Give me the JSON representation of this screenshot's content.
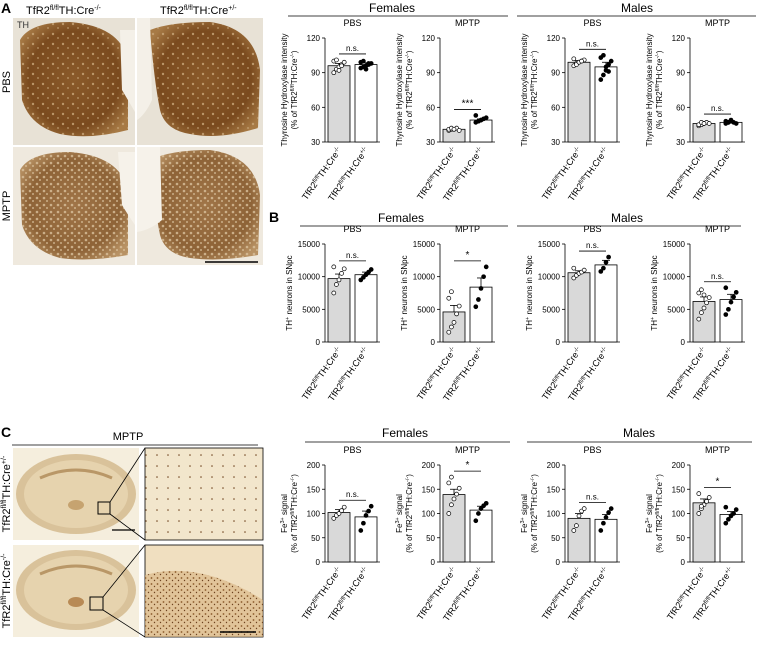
{
  "figure": {
    "panels": [
      {
        "letter": "A"
      },
      {
        "letter": "B"
      },
      {
        "letter": "C"
      }
    ],
    "panelA": {
      "stain_label": "TH",
      "column_headers": [
        {
          "base": "TfR2",
          "sup": "fl/fl",
          "rest": "TH:Cre",
          "rest_sup": "-/-"
        },
        {
          "base": "TfR2",
          "sup": "fl/fl",
          "rest": "TH:Cre",
          "rest_sup": "+/-"
        }
      ],
      "row_labels": [
        "PBS",
        "MPTP"
      ]
    },
    "panelC_images": {
      "title": "MPTP",
      "row_labels": [
        {
          "base": "TfR2",
          "sup": "fl/fl",
          "rest": "TH:Cre",
          "rest_sup": "+/-"
        },
        {
          "base": "TfR2",
          "sup": "fl/fl",
          "rest": "TH:Cre",
          "rest_sup": "-/-"
        }
      ]
    },
    "group_headers": {
      "females": "Females",
      "males": "Males"
    }
  },
  "chart_data": [
    {
      "type": "bar",
      "panel": "A",
      "group": "Females",
      "title": "PBS",
      "categories": [
        "TfR2 fl/fl TH:Cre -/-",
        "TfR2 fl/fl TH:Cre +/-"
      ],
      "values": [
        96,
        97
      ],
      "errors": [
        2,
        1.5
      ],
      "points": [
        [
          90,
          93,
          95,
          97,
          99,
          100,
          101,
          92,
          96
        ],
        [
          94,
          95,
          96,
          97,
          98,
          99,
          100,
          93,
          98
        ]
      ],
      "ylabel": "Thyrosine Hydroxylase intensity (% of TfR2 fl/fl TH:Cre -/-)",
      "yticks": [
        30,
        60,
        90,
        120
      ],
      "ylim": [
        30,
        120
      ],
      "significance": "n.s."
    },
    {
      "type": "bar",
      "panel": "A",
      "group": "Females",
      "title": "MPTP",
      "categories": [
        "TfR2 fl/fl TH:Cre -/-",
        "TfR2 fl/fl TH:Cre +/-"
      ],
      "values": [
        41,
        49
      ],
      "errors": [
        0.5,
        1
      ],
      "points": [
        [
          40,
          41,
          41,
          42,
          40,
          41,
          42,
          41
        ],
        [
          47,
          48,
          49,
          50,
          51,
          53,
          48,
          49
        ]
      ],
      "ylabel": "Thyrosine Hydroxylase intensity (% of TfR2 fl/fl TH:Cre -/-)",
      "yticks": [
        30,
        60,
        90,
        120
      ],
      "ylim": [
        30,
        120
      ],
      "significance": "***"
    },
    {
      "type": "bar",
      "panel": "A",
      "group": "Males",
      "title": "PBS",
      "categories": [
        "TfR2 fl/fl TH:Cre -/-",
        "TfR2 fl/fl TH:Cre +/-"
      ],
      "values": [
        99,
        95
      ],
      "errors": [
        1.5,
        4
      ],
      "points": [
        [
          96,
          98,
          99,
          100,
          101,
          102,
          97,
          99,
          100
        ],
        [
          84,
          88,
          92,
          97,
          100,
          103,
          105,
          95,
          91
        ]
      ],
      "ylabel": "Thyrosine Hydroxylase intensity (% of TfR2 fl/fl TH:Cre -/-)",
      "yticks": [
        30,
        60,
        90,
        120
      ],
      "ylim": [
        30,
        120
      ],
      "significance": "n.s."
    },
    {
      "type": "bar",
      "panel": "A",
      "group": "Males",
      "title": "MPTP",
      "categories": [
        "TfR2 fl/fl TH:Cre -/-",
        "TfR2 fl/fl TH:Cre +/-"
      ],
      "values": [
        46,
        47
      ],
      "errors": [
        0.5,
        0.5
      ],
      "points": [
        [
          44,
          45,
          46,
          47,
          46,
          45,
          47,
          46
        ],
        [
          46,
          47,
          48,
          47,
          46,
          48,
          47,
          49
        ]
      ],
      "ylabel": "Thyrosine Hydroxylase intensity (% of TfR2 fl/fl TH:Cre -/-)",
      "yticks": [
        30,
        60,
        90,
        120
      ],
      "ylim": [
        30,
        120
      ],
      "significance": "n.s."
    },
    {
      "type": "bar",
      "panel": "B",
      "group": "Females",
      "title": "PBS",
      "categories": [
        "TfR2 fl/fl TH:Cre -/-",
        "TfR2 fl/fl TH:Cre +/-"
      ],
      "values": [
        9700,
        10300
      ],
      "errors": [
        700,
        400
      ],
      "points": [
        [
          7500,
          8800,
          9500,
          10500,
          11200,
          11500
        ],
        [
          9500,
          9900,
          10300,
          10700,
          11100
        ]
      ],
      "ylabel": "TH+ neurons in SNpc",
      "yticks": [
        0,
        5000,
        10000,
        15000
      ],
      "ylim": [
        0,
        15000
      ],
      "significance": "n.s."
    },
    {
      "type": "bar",
      "panel": "B",
      "group": "Females",
      "title": "MPTP",
      "categories": [
        "TfR2 fl/fl TH:Cre -/-",
        "TfR2 fl/fl TH:Cre +/-"
      ],
      "values": [
        4600,
        8400
      ],
      "errors": [
        1000,
        1400
      ],
      "points": [
        [
          1500,
          2300,
          3000,
          4300,
          5500,
          6700,
          7700
        ],
        [
          5400,
          6500,
          8200,
          10000,
          11500
        ]
      ],
      "ylabel": "TH+ neurons in SNpc",
      "yticks": [
        0,
        5000,
        10000,
        15000
      ],
      "ylim": [
        0,
        15000
      ],
      "significance": "*"
    },
    {
      "type": "bar",
      "panel": "B",
      "group": "Males",
      "title": "PBS",
      "categories": [
        "TfR2 fl/fl TH:Cre -/-",
        "TfR2 fl/fl TH:Cre +/-"
      ],
      "values": [
        10600,
        11800
      ],
      "errors": [
        300,
        700
      ],
      "points": [
        [
          9800,
          10200,
          10500,
          10700,
          11000,
          11300
        ],
        [
          10800,
          11300,
          12200,
          13000
        ]
      ],
      "ylabel": "TH+ neurons in SNpc",
      "yticks": [
        0,
        5000,
        10000,
        15000
      ],
      "ylim": [
        0,
        15000
      ],
      "significance": "n.s."
    },
    {
      "type": "bar",
      "panel": "B",
      "group": "Males",
      "title": "MPTP",
      "categories": [
        "TfR2 fl/fl TH:Cre -/-",
        "TfR2 fl/fl TH:Cre +/-"
      ],
      "values": [
        6200,
        6500
      ],
      "errors": [
        700,
        800
      ],
      "points": [
        [
          3500,
          4500,
          5200,
          6000,
          6800,
          7500,
          8000,
          7200
        ],
        [
          4200,
          5000,
          6100,
          6900,
          7600,
          8300
        ]
      ],
      "ylabel": "TH+ neurons in SNpc",
      "yticks": [
        0,
        5000,
        10000,
        15000
      ],
      "ylim": [
        0,
        15000
      ],
      "significance": "n.s."
    },
    {
      "type": "bar",
      "panel": "C",
      "group": "Females",
      "title": "PBS",
      "categories": [
        "TfR2 fl/fl TH:Cre -/-",
        "TfR2 fl/fl TH:Cre +/-"
      ],
      "values": [
        102,
        93
      ],
      "errors": [
        6,
        12
      ],
      "points": [
        [
          90,
          96,
          100,
          106,
          113
        ],
        [
          65,
          80,
          96,
          105,
          115
        ]
      ],
      "ylabel": "Fe3+ signal (% of TfR2 fl/fl TH:Cre -/-)",
      "yticks": [
        0,
        50,
        100,
        150,
        200
      ],
      "ylim": [
        0,
        200
      ],
      "significance": "n.s."
    },
    {
      "type": "bar",
      "panel": "C",
      "group": "Females",
      "title": "MPTP",
      "categories": [
        "TfR2 fl/fl TH:Cre -/-",
        "TfR2 fl/fl TH:Cre +/-"
      ],
      "values": [
        139,
        107
      ],
      "errors": [
        11,
        8
      ],
      "points": [
        [
          100,
          118,
          130,
          140,
          152,
          163,
          175
        ],
        [
          85,
          100,
          110,
          116,
          121
        ]
      ],
      "ylabel": "Fe3+ signal (% of TfR2 fl/fl TH:Cre -/-)",
      "yticks": [
        0,
        50,
        100,
        150,
        200
      ],
      "ylim": [
        0,
        200
      ],
      "significance": "*"
    },
    {
      "type": "bar",
      "panel": "C",
      "group": "Males",
      "title": "PBS",
      "categories": [
        "TfR2 fl/fl TH:Cre -/-",
        "TfR2 fl/fl TH:Cre +/-"
      ],
      "values": [
        90,
        88
      ],
      "errors": [
        10,
        10
      ],
      "points": [
        [
          65,
          75,
          95,
          105,
          110
        ],
        [
          65,
          80,
          92,
          102,
          110
        ]
      ],
      "ylabel": "Fe3+ signal (% of TfR2 fl/fl TH:Cre -/-)",
      "yticks": [
        0,
        50,
        100,
        150,
        200
      ],
      "ylim": [
        0,
        200
      ],
      "significance": "n.s."
    },
    {
      "type": "bar",
      "panel": "C",
      "group": "Males",
      "title": "MPTP",
      "categories": [
        "TfR2 fl/fl TH:Cre -/-",
        "TfR2 fl/fl TH:Cre +/-"
      ],
      "values": [
        122,
        98
      ],
      "errors": [
        8,
        6
      ],
      "points": [
        [
          100,
          110,
          118,
          125,
          133,
          141,
          115
        ],
        [
          80,
          88,
          95,
          100,
          108,
          113
        ]
      ],
      "ylabel": "Fe3+ signal (% of TfR2 fl/fl TH:Cre -/-)",
      "yticks": [
        0,
        50,
        100,
        150,
        200
      ],
      "ylim": [
        0,
        200
      ],
      "significance": "*"
    }
  ]
}
